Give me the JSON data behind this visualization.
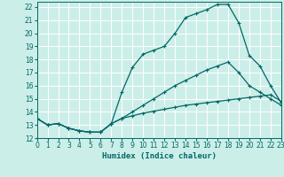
{
  "xlabel": "Humidex (Indice chaleur)",
  "bg_color": "#cceee8",
  "grid_color": "#ffffff",
  "line_color": "#006868",
  "xlim": [
    0,
    23
  ],
  "ylim": [
    12,
    22.4
  ],
  "xticks": [
    0,
    1,
    2,
    3,
    4,
    5,
    6,
    7,
    8,
    9,
    10,
    11,
    12,
    13,
    14,
    15,
    16,
    17,
    18,
    19,
    20,
    21,
    22,
    23
  ],
  "yticks": [
    12,
    13,
    14,
    15,
    16,
    17,
    18,
    19,
    20,
    21,
    22
  ],
  "line_top_x": [
    0,
    1,
    2,
    3,
    4,
    5,
    6,
    7,
    8,
    9,
    10,
    11,
    12,
    13,
    14,
    15,
    16,
    17,
    18,
    19,
    20,
    21,
    22,
    23
  ],
  "line_top_y": [
    13.5,
    13.0,
    13.1,
    12.75,
    12.55,
    12.45,
    12.45,
    13.1,
    15.5,
    17.4,
    18.4,
    18.7,
    19.0,
    20.0,
    21.2,
    21.5,
    21.8,
    22.2,
    22.2,
    20.8,
    18.3,
    17.5,
    16.0,
    14.7
  ],
  "line_mid_x": [
    0,
    1,
    2,
    3,
    4,
    5,
    6,
    7,
    8,
    9,
    10,
    11,
    12,
    13,
    14,
    15,
    16,
    17,
    18,
    19,
    20,
    21,
    22,
    23
  ],
  "line_mid_y": [
    13.5,
    13.0,
    13.1,
    12.75,
    12.55,
    12.45,
    12.45,
    13.1,
    13.5,
    14.0,
    14.5,
    15.0,
    15.5,
    16.0,
    16.4,
    16.8,
    17.2,
    17.5,
    17.8,
    17.0,
    16.0,
    15.5,
    15.0,
    14.5
  ],
  "line_bot_x": [
    0,
    1,
    2,
    3,
    4,
    5,
    6,
    7,
    8,
    9,
    10,
    11,
    12,
    13,
    14,
    15,
    16,
    17,
    18,
    19,
    20,
    21,
    22,
    23
  ],
  "line_bot_y": [
    13.5,
    13.0,
    13.1,
    12.75,
    12.55,
    12.45,
    12.45,
    13.1,
    13.5,
    13.7,
    13.9,
    14.05,
    14.2,
    14.35,
    14.5,
    14.6,
    14.7,
    14.8,
    14.9,
    15.0,
    15.1,
    15.2,
    15.3,
    14.8
  ]
}
